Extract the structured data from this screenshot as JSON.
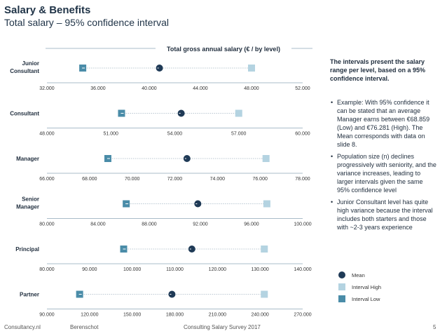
{
  "header": {
    "title": "Salary & Benefits",
    "subtitle": "Total salary – 95% confidence interval"
  },
  "colors": {
    "mean": "#1f3a56",
    "interval_high": "#b4d3e1",
    "interval_low": "#4a8ca8",
    "axis": "#a9bcc9"
  },
  "chart_data": {
    "type": "scatter",
    "title": "Total gross annual salary (€ / by level)",
    "panels": [
      {
        "level": "Junior Consultant",
        "ticks": [
          "32.000",
          "36.000",
          "40.000",
          "44.000",
          "48.000",
          "52.000"
        ],
        "xlim": [
          32000,
          52000
        ],
        "low": 34800,
        "mean": 40800,
        "high": 48000
      },
      {
        "level": "Consultant",
        "ticks": [
          "48.000",
          "51.000",
          "54.000",
          "57.000",
          "60.000"
        ],
        "xlim": [
          48000,
          60000
        ],
        "low": 51500,
        "mean": 54300,
        "high": 57000
      },
      {
        "level": "Manager",
        "ticks": [
          "66.000",
          "68.000",
          "70.000",
          "72.000",
          "74.000",
          "76.000",
          "78.000"
        ],
        "xlim": [
          66000,
          78000
        ],
        "low": 68859,
        "mean": 72570,
        "high": 76281
      },
      {
        "level": "Senior Manager",
        "ticks": [
          "80.000",
          "84.000",
          "88.000",
          "92.000",
          "96.000",
          "100.000"
        ],
        "xlim": [
          80000,
          100000
        ],
        "low": 86200,
        "mean": 91800,
        "high": 97200
      },
      {
        "level": "Principal",
        "ticks": [
          "80.000",
          "90.000",
          "100.000",
          "110.000",
          "120.000",
          "130.000",
          "140.000"
        ],
        "xlim": [
          80000,
          140000
        ],
        "low": 98000,
        "mean": 114000,
        "high": 131000
      },
      {
        "level": "Partner",
        "ticks": [
          "90.000",
          "120.000",
          "150.000",
          "180.000",
          "210.000",
          "240.000",
          "270.000"
        ],
        "xlim": [
          90000,
          270000
        ],
        "low": 113000,
        "mean": 178000,
        "high": 243000
      }
    ],
    "legend": [
      "Mean",
      "Interval High",
      "Interval Low"
    ]
  },
  "sidebar": {
    "intro": "The intervals present the salary range per level, based on a 95% confidence interval.",
    "bullets": [
      "Example: With 95% confidence it can be stated that an average Manager earns between €68.859 (Low) and €76.281 (High). The Mean corresponds with data on slide 8.",
      "Population size (n) declines progressively with seniority, and the variance increases, leading to larger intervals given the same 95% confidence level",
      "Junior Consultant level has quite high variance because the interval includes both starters and those with ~2-3 years experience"
    ]
  },
  "footer": {
    "source": "Consultancy.nl",
    "partner": "Berenschot",
    "publication": "Consulting Salary Survey 2017",
    "page": "5"
  }
}
